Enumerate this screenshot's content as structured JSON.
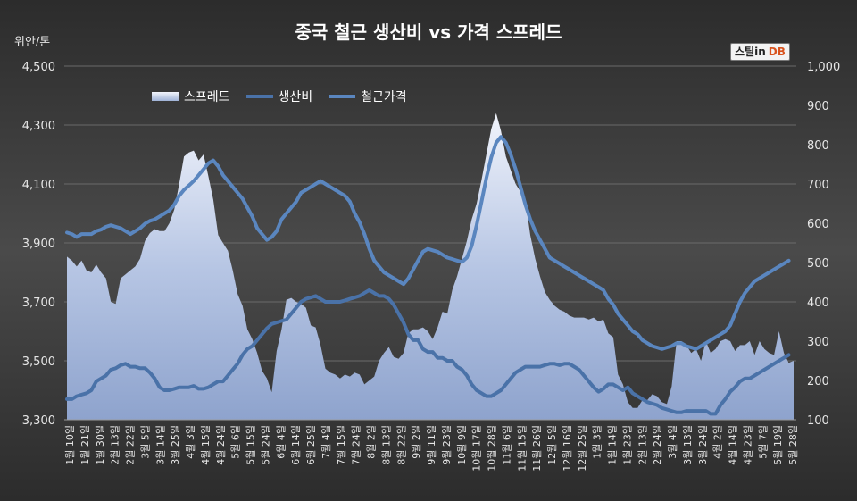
{
  "chart_data": {
    "type": "line",
    "title": "중국 철근 생산비 vs 가격 스프레드",
    "unit_label": "위안/톤",
    "left_axis": {
      "ylim": [
        3300,
        4500
      ],
      "ticks": [
        "3,300",
        "3,500",
        "3,700",
        "3,900",
        "4,100",
        "4,300",
        "4,500"
      ]
    },
    "right_axis": {
      "ylim": [
        100,
        1000
      ],
      "ticks": [
        "100",
        "200",
        "300",
        "400",
        "500",
        "600",
        "700",
        "800",
        "900",
        "1,000"
      ]
    },
    "x_ticks": [
      "1월 10일",
      "1월 21일",
      "1월 30일",
      "2월 13일",
      "2월 22일",
      "3월 5일",
      "3월 14일",
      "3월 25일",
      "4월 3일",
      "4월 15일",
      "4월 24일",
      "5월 6일",
      "5월 15일",
      "5월 24일",
      "6월 4일",
      "6월 14일",
      "6월 25일",
      "7월 4일",
      "7월 15일",
      "7월 24일",
      "8월 2일",
      "8월 13일",
      "8월 22일",
      "9월 2일",
      "9월 11일",
      "9월 23일",
      "10월 9일",
      "10월 17일",
      "10월 28일",
      "11월 6일",
      "11월 15일",
      "11월 26일",
      "12월 5일",
      "12월 16일",
      "12월 25일",
      "1월 3일",
      "1월 14일",
      "1월 23일",
      "2월 13일",
      "2월 24일",
      "3월 4일",
      "3월 13일",
      "3월 24일",
      "4월 2일",
      "4월 14일",
      "4월 23일",
      "5월 7일",
      "5월 19일",
      "5월 28일"
    ],
    "grid": true,
    "legend_position": "top-left",
    "colors": {
      "background": "#3e3e3e",
      "spread_fill": "#b3c3e3",
      "cost_line": "#4a72a8",
      "price_line": "#5a86bf",
      "text": "#ffffff"
    },
    "series": [
      {
        "name": "스프레드",
        "axis": "right",
        "type": "area",
        "values": [
          515,
          505,
          490,
          505,
          480,
          475,
          495,
          475,
          460,
          400,
          395,
          460,
          470,
          480,
          490,
          510,
          555,
          575,
          585,
          580,
          580,
          600,
          635,
          700,
          770,
          780,
          785,
          760,
          775,
          720,
          660,
          570,
          550,
          530,
          480,
          420,
          390,
          330,
          305,
          270,
          225,
          205,
          170,
          275,
          330,
          405,
          410,
          400,
          395,
          385,
          340,
          335,
          290,
          230,
          220,
          215,
          205,
          215,
          210,
          220,
          215,
          190,
          200,
          210,
          250,
          270,
          285,
          260,
          255,
          270,
          320,
          330,
          330,
          335,
          325,
          305,
          335,
          375,
          370,
          430,
          465,
          510,
          555,
          610,
          650,
          710,
          775,
          840,
          880,
          835,
          770,
          735,
          700,
          680,
          660,
          570,
          510,
          465,
          425,
          405,
          390,
          380,
          375,
          365,
          360,
          360,
          360,
          355,
          360,
          350,
          355,
          320,
          310,
          215,
          190,
          145,
          130,
          130,
          150,
          150,
          165,
          160,
          145,
          140,
          185,
          300,
          300,
          290,
          270,
          280,
          250,
          300,
          270,
          280,
          300,
          305,
          300,
          275,
          290,
          290,
          300,
          265,
          300,
          280,
          270,
          265,
          325,
          270,
          245,
          250
        ]
      },
      {
        "name": "생산비",
        "axis": "left",
        "type": "line",
        "values": [
          3370,
          3370,
          3380,
          3385,
          3390,
          3400,
          3430,
          3440,
          3450,
          3470,
          3475,
          3485,
          3490,
          3480,
          3480,
          3475,
          3475,
          3460,
          3440,
          3410,
          3400,
          3400,
          3405,
          3410,
          3410,
          3410,
          3415,
          3405,
          3405,
          3410,
          3420,
          3430,
          3430,
          3450,
          3470,
          3490,
          3520,
          3540,
          3550,
          3570,
          3590,
          3610,
          3625,
          3630,
          3635,
          3640,
          3660,
          3680,
          3700,
          3710,
          3715,
          3720,
          3710,
          3700,
          3700,
          3700,
          3700,
          3705,
          3710,
          3715,
          3720,
          3730,
          3740,
          3730,
          3720,
          3720,
          3710,
          3690,
          3660,
          3630,
          3590,
          3570,
          3570,
          3540,
          3530,
          3530,
          3510,
          3510,
          3500,
          3500,
          3480,
          3470,
          3450,
          3420,
          3400,
          3390,
          3380,
          3380,
          3390,
          3400,
          3420,
          3440,
          3460,
          3470,
          3480,
          3480,
          3480,
          3480,
          3485,
          3490,
          3490,
          3485,
          3490,
          3490,
          3480,
          3470,
          3450,
          3430,
          3410,
          3395,
          3405,
          3420,
          3420,
          3410,
          3400,
          3410,
          3390,
          3380,
          3370,
          3360,
          3355,
          3350,
          3340,
          3335,
          3330,
          3325,
          3325,
          3330,
          3330,
          3330,
          3330,
          3330,
          3320,
          3320,
          3350,
          3370,
          3395,
          3410,
          3430,
          3440,
          3440,
          3450,
          3460,
          3470,
          3480,
          3490,
          3500,
          3510,
          3520
        ]
      },
      {
        "name": "철근가격",
        "axis": "left",
        "type": "line",
        "values": [
          3935,
          3930,
          3920,
          3930,
          3930,
          3930,
          3940,
          3945,
          3955,
          3960,
          3955,
          3950,
          3940,
          3930,
          3940,
          3950,
          3965,
          3975,
          3980,
          3990,
          4000,
          4010,
          4030,
          4060,
          4080,
          4095,
          4110,
          4130,
          4150,
          4170,
          4180,
          4160,
          4130,
          4110,
          4090,
          4070,
          4050,
          4020,
          3990,
          3950,
          3930,
          3910,
          3920,
          3940,
          3980,
          4000,
          4020,
          4040,
          4070,
          4080,
          4090,
          4100,
          4110,
          4100,
          4090,
          4080,
          4070,
          4060,
          4040,
          4000,
          3970,
          3930,
          3880,
          3840,
          3820,
          3800,
          3790,
          3780,
          3770,
          3760,
          3780,
          3810,
          3840,
          3870,
          3880,
          3875,
          3870,
          3860,
          3850,
          3845,
          3840,
          3835,
          3850,
          3890,
          3960,
          4040,
          4120,
          4190,
          4240,
          4260,
          4240,
          4200,
          4150,
          4090,
          4030,
          3980,
          3940,
          3910,
          3880,
          3850,
          3840,
          3830,
          3820,
          3810,
          3800,
          3790,
          3780,
          3770,
          3760,
          3750,
          3740,
          3710,
          3690,
          3660,
          3640,
          3620,
          3600,
          3590,
          3570,
          3560,
          3550,
          3545,
          3540,
          3545,
          3550,
          3560,
          3560,
          3550,
          3545,
          3540,
          3550,
          3560,
          3570,
          3580,
          3590,
          3600,
          3620,
          3660,
          3700,
          3730,
          3750,
          3770,
          3780,
          3790,
          3800,
          3810,
          3820,
          3830,
          3840
        ]
      }
    ]
  }
}
